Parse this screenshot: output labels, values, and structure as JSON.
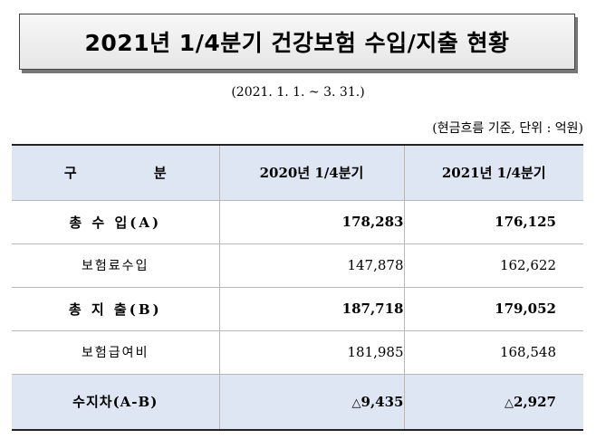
{
  "title": "2021년 1/4분기 건강보험 수입/지출 현황",
  "period": "(2021. 1. 1. ~ 3. 31.)",
  "note": "(현금흐름 기준, 단위 : 억원)",
  "table": {
    "headers": [
      "구 분",
      "2020년 1/4분기",
      "2021년 1/4분기"
    ],
    "rows": [
      {
        "label": "총 수 입(A)",
        "v2020": "178,283",
        "v2021": "176,125"
      },
      {
        "label": "보험료수입",
        "v2020": "147,878",
        "v2021": "162,622"
      },
      {
        "label": "총 지 출(B)",
        "v2020": "187,718",
        "v2021": "179,052"
      },
      {
        "label": "보험급여비",
        "v2020": "181,985",
        "v2021": "168,548"
      },
      {
        "label": "수지차(A-B)",
        "v2020": "9,435",
        "v2021": "2,927"
      }
    ],
    "deficit_symbol": "△"
  }
}
